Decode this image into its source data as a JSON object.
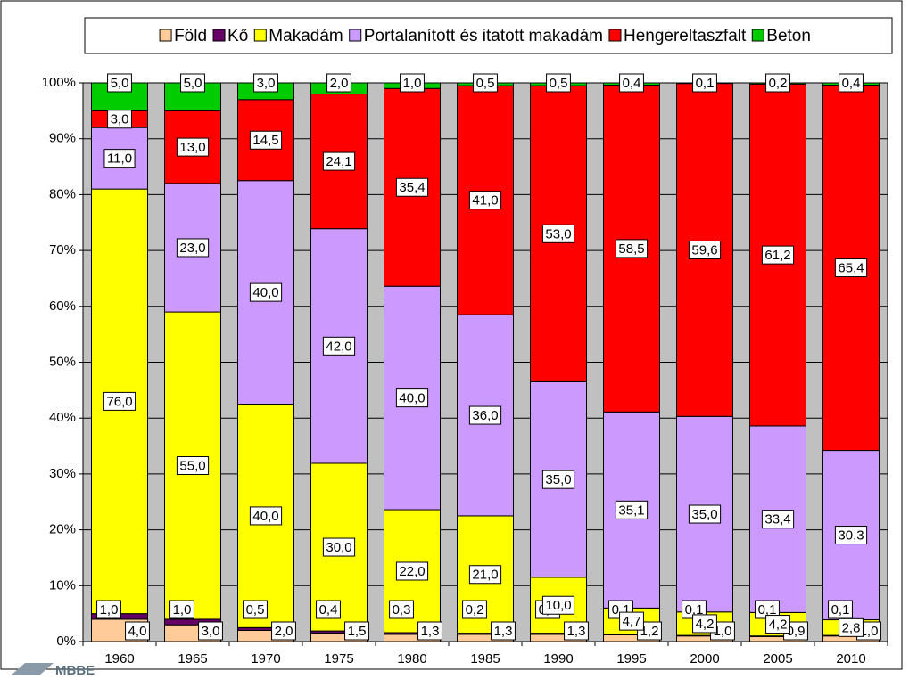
{
  "chart_data": {
    "type": "bar",
    "stacked": true,
    "categories": [
      "1960",
      "1965",
      "1970",
      "1975",
      "1980",
      "1985",
      "1990",
      "1995",
      "2000",
      "2005",
      "2010"
    ],
    "series": [
      {
        "name": "Föld",
        "color": "#ffcc99",
        "values": [
          4.0,
          3.0,
          2.0,
          1.5,
          1.3,
          1.3,
          1.3,
          1.2,
          1.0,
          0.9,
          1.0
        ],
        "value_labels": [
          "4,0",
          "3,0",
          "2,0",
          "1,5",
          "1,3",
          "1,3",
          "1,3",
          "1,2",
          "1,0",
          "0,9",
          "1,0"
        ]
      },
      {
        "name": "Kő",
        "color": "#660066",
        "values": [
          1.0,
          1.0,
          0.5,
          0.4,
          0.3,
          0.2,
          0.2,
          0.1,
          0.1,
          0.1,
          0.1
        ],
        "value_labels": [
          "1,0",
          "1,0",
          "0,5",
          "0,4",
          "0,3",
          "0,2",
          "0,2",
          "0,1",
          "0,1",
          "0,1",
          "0,1"
        ]
      },
      {
        "name": "Makadám",
        "color": "#ffff00",
        "values": [
          76.0,
          55.0,
          40.0,
          30.0,
          22.0,
          21.0,
          10.0,
          4.7,
          4.2,
          4.2,
          2.8
        ],
        "value_labels": [
          "76,0",
          "55,0",
          "40,0",
          "30,0",
          "22,0",
          "21,0",
          "10,0",
          "4,7",
          "4,2",
          "4,2",
          "2,8"
        ]
      },
      {
        "name": "Portalanított és itatott makadám",
        "color": "#cc99ff",
        "values": [
          11.0,
          23.0,
          40.0,
          42.0,
          40.0,
          36.0,
          35.0,
          35.1,
          35.0,
          33.4,
          30.3
        ],
        "value_labels": [
          "11,0",
          "23,0",
          "40,0",
          "42,0",
          "40,0",
          "36,0",
          "35,0",
          "35,1",
          "35,0",
          "33,4",
          "30,3"
        ]
      },
      {
        "name": "Hengereltaszfalt",
        "color": "#ff0000",
        "values": [
          3.0,
          13.0,
          14.5,
          24.1,
          35.4,
          41.0,
          53.0,
          58.5,
          59.6,
          61.2,
          65.4
        ],
        "value_labels": [
          "3,0",
          "13,0",
          "14,5",
          "24,1",
          "35,4",
          "41,0",
          "53,0",
          "58,5",
          "59,6",
          "61,2",
          "65,4"
        ]
      },
      {
        "name": "Beton",
        "color": "#00cc00",
        "values": [
          5.0,
          5.0,
          3.0,
          2.0,
          1.0,
          0.5,
          0.5,
          0.4,
          0.1,
          0.2,
          0.4
        ],
        "value_labels": [
          "5,0",
          "5,0",
          "3,0",
          "2,0",
          "1,0",
          "0,5",
          "0,5",
          "0,4",
          "0,1",
          "0,2",
          "0,4"
        ]
      }
    ],
    "ylim": [
      0,
      100
    ],
    "yticks": [
      {
        "value": 0,
        "label": "0%"
      },
      {
        "value": 10,
        "label": "10%"
      },
      {
        "value": 20,
        "label": "20%"
      },
      {
        "value": 30,
        "label": "30%"
      },
      {
        "value": 40,
        "label": "40%"
      },
      {
        "value": 50,
        "label": "50%"
      },
      {
        "value": 60,
        "label": "60%"
      },
      {
        "value": 70,
        "label": "70%"
      },
      {
        "value": 80,
        "label": "80%"
      },
      {
        "value": 90,
        "label": "90%"
      },
      {
        "value": 100,
        "label": "100%"
      }
    ],
    "grid": true,
    "plot_background": "#c0c0c0",
    "legend": "top"
  },
  "logo": "MBBE"
}
